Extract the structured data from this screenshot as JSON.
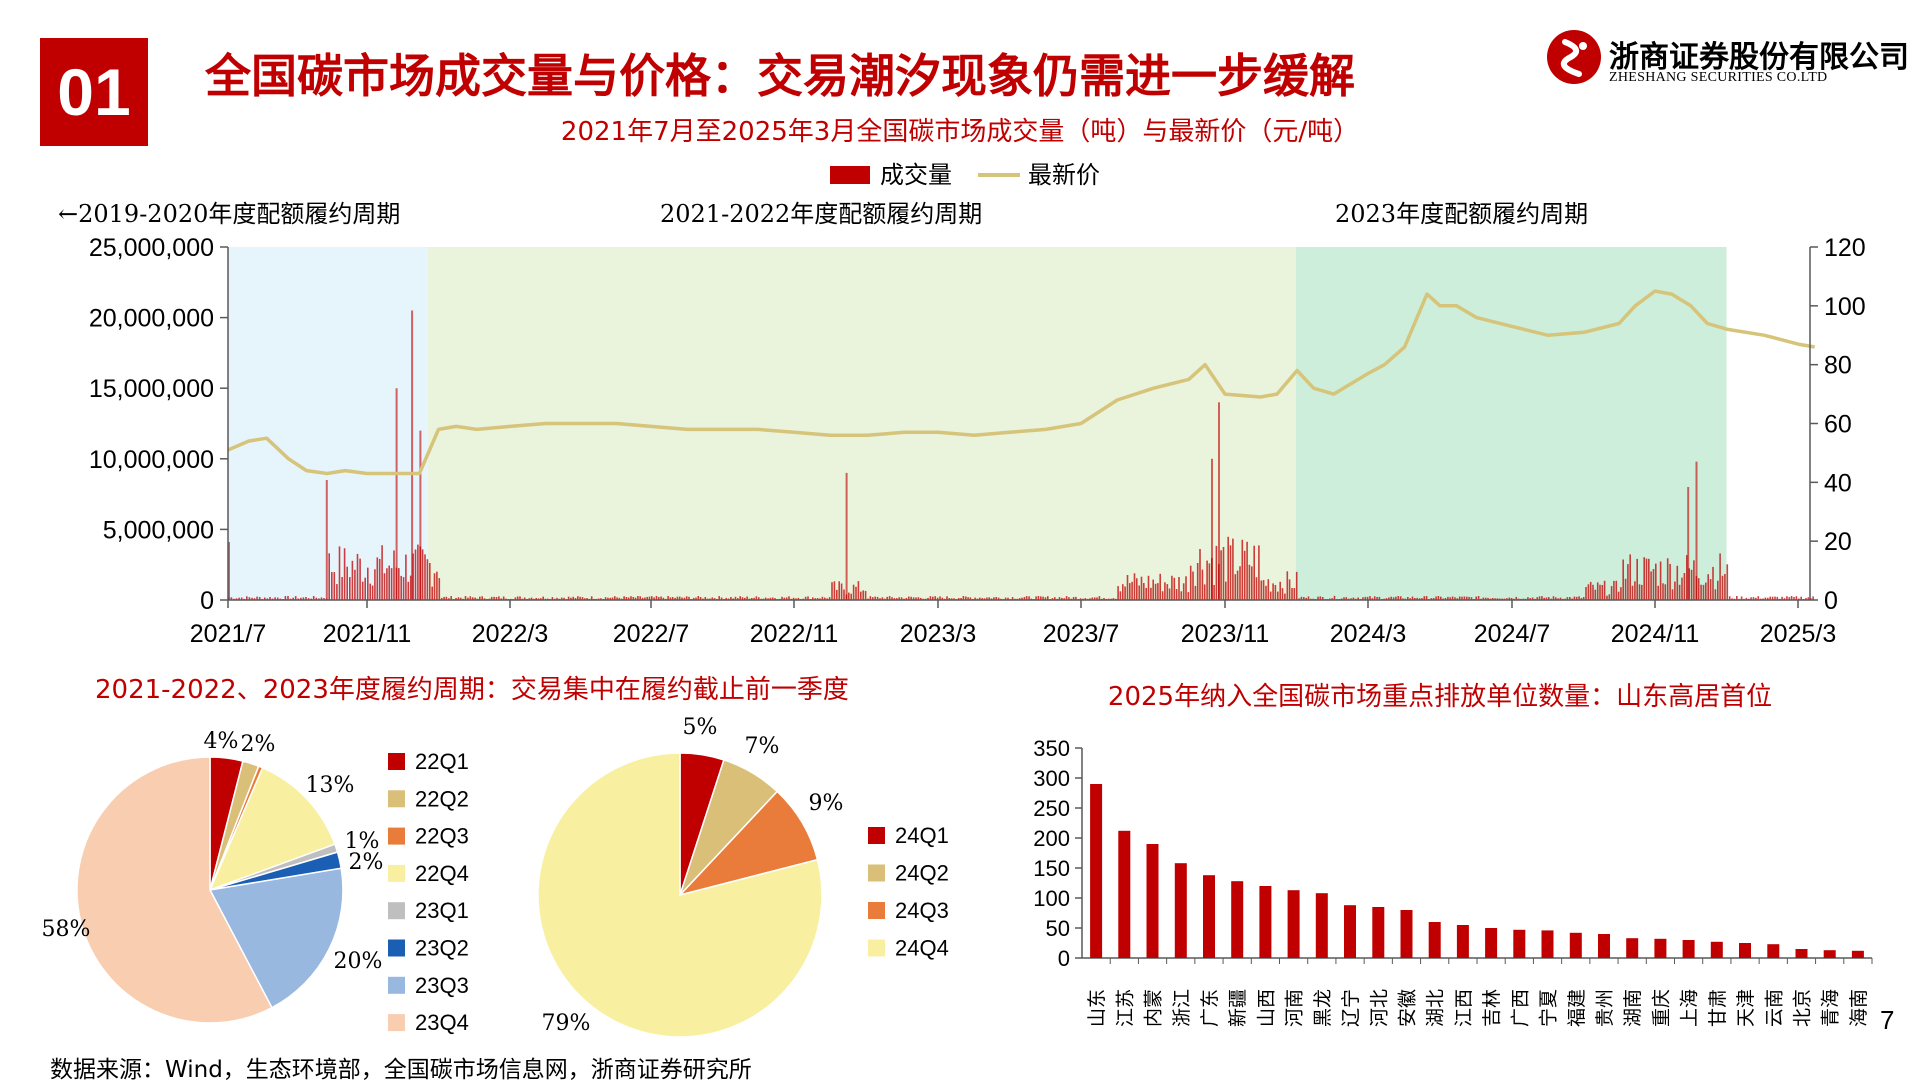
{
  "header": {
    "badge": "01",
    "title": "全国碳市场成交量与价格：交易潮汐现象仍需进一步缓解",
    "logo_cn": "浙商证券股份有限公司",
    "logo_en": "ZHESHANG SECURITIES CO.LTD"
  },
  "footer": {
    "source": "数据来源：Wind，生态环境部，全国碳市场信息网，浙商证券研究所",
    "page": "7"
  },
  "colors": {
    "brand_red": "#c00000",
    "volume_bar": "#c00000",
    "price_line": "#d6c47a",
    "period1_bg": "#e6f4fb",
    "period2_bg": "#eaf3dc",
    "period3_bg": "#cdeedb"
  },
  "chart_data": [
    {
      "type": "bar+line",
      "title": "2021年7月至2025年3月全国碳市场成交量（吨）与最新价（元/吨）",
      "legend": [
        "成交量",
        "最新价"
      ],
      "legend_position": "top-center",
      "period_labels": [
        "←2019-2020年度配额履约周期",
        "2021-2022年度配额履约周期",
        "2023年度配额履约周期"
      ],
      "x_ticks": [
        "2021/7",
        "2021/11",
        "2022/3",
        "2022/7",
        "2022/11",
        "2023/3",
        "2023/7",
        "2023/11",
        "2024/3",
        "2024/7",
        "2024/11",
        "2025/3"
      ],
      "y_left_ticks": [
        "0",
        "5,000,000",
        "10,000,000",
        "15,000,000",
        "20,000,000",
        "25,000,000"
      ],
      "y_right_ticks": [
        "0",
        "20",
        "40",
        "60",
        "80",
        "100",
        "120"
      ],
      "y_left_lim": [
        0,
        25000000
      ],
      "y_right_lim": [
        0,
        120
      ],
      "periods": [
        {
          "name": "2019-2020",
          "start": "2021-07",
          "end": "2021-12-31"
        },
        {
          "name": "2021-2022",
          "start": "2022-01",
          "end": "2023-12-31"
        },
        {
          "name": "2023",
          "start": "2024-01",
          "end": "2024-12-31"
        }
      ],
      "price_series": {
        "name": "最新价",
        "x": [
          "2021-07-16",
          "2021-08-01",
          "2021-08-15",
          "2021-09-01",
          "2021-09-15",
          "2021-10-01",
          "2021-10-15",
          "2021-11-01",
          "2021-11-15",
          "2021-12-01",
          "2021-12-15",
          "2021-12-31",
          "2022-01-15",
          "2022-02-01",
          "2022-03-01",
          "2022-04-01",
          "2022-05-01",
          "2022-06-01",
          "2022-07-01",
          "2022-08-01",
          "2022-09-01",
          "2022-10-01",
          "2022-11-01",
          "2022-12-01",
          "2023-01-01",
          "2023-02-01",
          "2023-03-01",
          "2023-04-01",
          "2023-05-01",
          "2023-06-01",
          "2023-07-01",
          "2023-08-01",
          "2023-09-01",
          "2023-10-01",
          "2023-10-15",
          "2023-11-01",
          "2023-12-01",
          "2023-12-15",
          "2024-01-01",
          "2024-01-15",
          "2024-02-01",
          "2024-03-01",
          "2024-03-15",
          "2024-04-01",
          "2024-04-20",
          "2024-05-01",
          "2024-05-15",
          "2024-06-01",
          "2024-07-01",
          "2024-08-01",
          "2024-09-01",
          "2024-10-01",
          "2024-10-15",
          "2024-11-01",
          "2024-11-15",
          "2024-12-01",
          "2024-12-15",
          "2025-01-01",
          "2025-02-01",
          "2025-03-01",
          "2025-03-15"
        ],
        "y": [
          51,
          54,
          55,
          48,
          44,
          43,
          44,
          43,
          43,
          43,
          43,
          58,
          59,
          58,
          59,
          60,
          60,
          60,
          59,
          58,
          58,
          58,
          57,
          56,
          56,
          57,
          57,
          56,
          57,
          58,
          60,
          68,
          72,
          75,
          80,
          70,
          69,
          70,
          78,
          72,
          70,
          77,
          80,
          86,
          104,
          100,
          100,
          96,
          93,
          90,
          91,
          94,
          100,
          105,
          104,
          100,
          94,
          92,
          90,
          87,
          86
        ]
      },
      "volume_series": {
        "name": "成交量",
        "notable_peaks": [
          {
            "date": "2021-07-16",
            "value": 4100000
          },
          {
            "date": "2021-09-30",
            "value": 8500000
          },
          {
            "date": "2021-11-25",
            "value": 15000000
          },
          {
            "date": "2021-12-08",
            "value": 20500000
          },
          {
            "date": "2021-12-15",
            "value": 12000000
          },
          {
            "date": "2022-12-14",
            "value": 9000000
          },
          {
            "date": "2023-10-26",
            "value": 14000000
          },
          {
            "date": "2023-10-20",
            "value": 10000000
          },
          {
            "date": "2024-12-05",
            "value": 9800000
          },
          {
            "date": "2024-11-28",
            "value": 8000000
          }
        ]
      }
    },
    {
      "type": "pie",
      "title": "2021-2022、2023年度履约周期：交易集中在履约截止前一季度",
      "categories": [
        "22Q1",
        "22Q2",
        "22Q3",
        "22Q4",
        "23Q1",
        "23Q2",
        "23Q3",
        "23Q4"
      ],
      "values": [
        4,
        2,
        0.5,
        13,
        1,
        2,
        20,
        58
      ],
      "labels": [
        "4%",
        "2%",
        "",
        "13%",
        "1%",
        "2%",
        "20%",
        "58%"
      ],
      "colors": [
        "#c00000",
        "#d9bf78",
        "#e97c3a",
        "#f8f0a0",
        "#bfbfbf",
        "#1a5fb4",
        "#98b8e0",
        "#f8cdb0"
      ],
      "legend_position": "right"
    },
    {
      "type": "pie",
      "categories": [
        "24Q1",
        "24Q2",
        "24Q3",
        "24Q4"
      ],
      "values": [
        5,
        7,
        9,
        79
      ],
      "labels": [
        "5%",
        "7%",
        "9%",
        "79%"
      ],
      "colors": [
        "#c00000",
        "#d9bf78",
        "#e97c3a",
        "#f8f0a0"
      ],
      "legend_position": "right"
    },
    {
      "type": "bar",
      "title": "2025年纳入全国碳市场重点排放单位数量：山东高居首位",
      "categories": [
        "山东",
        "江苏",
        "内蒙",
        "浙江",
        "广东",
        "新疆",
        "山西",
        "河南",
        "黑龙",
        "辽宁",
        "河北",
        "安徽",
        "湖北",
        "江西",
        "吉林",
        "广西",
        "宁夏",
        "福建",
        "贵州",
        "湖南",
        "重庆",
        "上海",
        "甘肃",
        "天津",
        "云南",
        "北京",
        "青海",
        "海南"
      ],
      "values": [
        290,
        212,
        190,
        158,
        138,
        128,
        120,
        113,
        108,
        88,
        85,
        80,
        60,
        55,
        50,
        47,
        46,
        42,
        40,
        33,
        32,
        30,
        27,
        25,
        23,
        15,
        13,
        12
      ],
      "y_ticks": [
        "0",
        "50",
        "100",
        "150",
        "200",
        "250",
        "300",
        "350"
      ],
      "ylim": [
        0,
        350
      ],
      "color": "#c00000"
    }
  ]
}
